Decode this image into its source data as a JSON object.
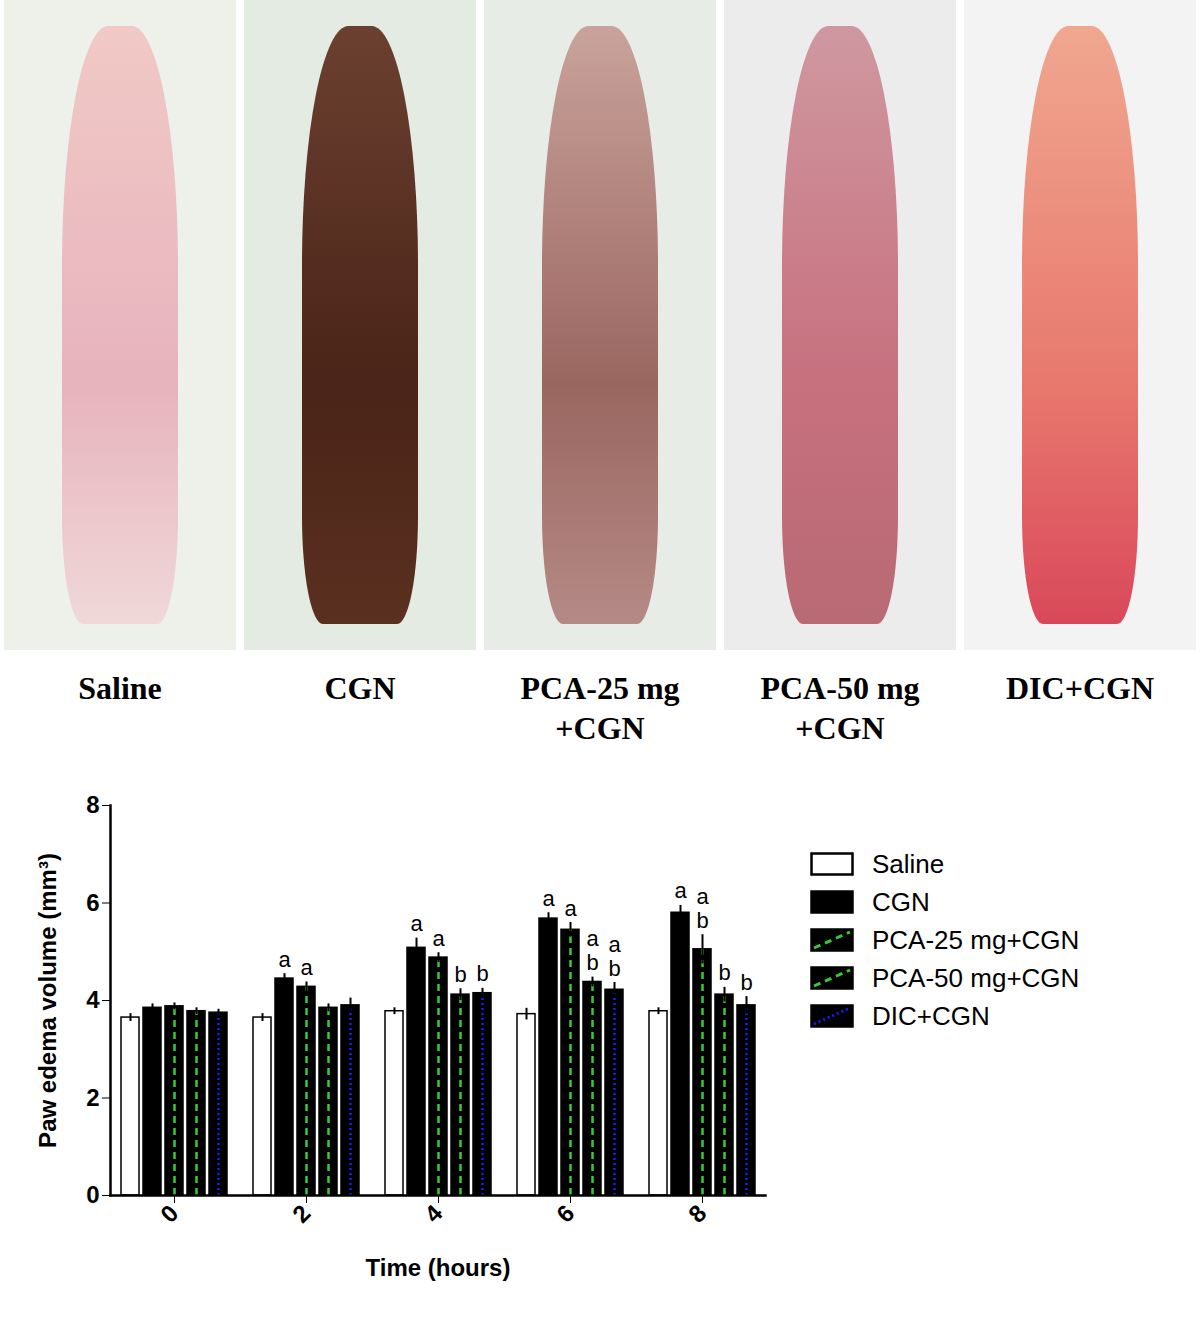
{
  "photo_panels": {
    "labels": [
      "Saline",
      "CGN",
      "PCA-25 mg+CGN",
      "PCA-50 mg+CGN",
      "DIC+CGN"
    ]
  },
  "chart_data": {
    "type": "bar",
    "xlabel": "Time (hours)",
    "ylabel": "Paw edema volume (mm³)",
    "categories": [
      0,
      2,
      4,
      6,
      8
    ],
    "ylim": [
      0,
      8
    ],
    "yticks": [
      0,
      2,
      4,
      6,
      8
    ],
    "legend": "right",
    "series": [
      {
        "name": "Saline",
        "color": "#ffffff",
        "values": [
          3.65,
          3.65,
          3.78,
          3.72,
          3.78
        ],
        "errors": [
          0.08,
          0.08,
          0.07,
          0.12,
          0.07
        ],
        "annotations": [
          null,
          null,
          null,
          null,
          null
        ]
      },
      {
        "name": "CGN",
        "color": "#000000",
        "values": [
          3.85,
          4.45,
          5.08,
          5.68,
          5.8
        ],
        "errors": [
          0.08,
          0.1,
          0.2,
          0.12,
          0.15
        ],
        "annotations": [
          null,
          [
            "a"
          ],
          [
            "a"
          ],
          [
            "a"
          ],
          [
            "a"
          ]
        ]
      },
      {
        "name": "PCA-25 mg+CGN",
        "color": "#33cc33",
        "line_style": "dashed",
        "values": [
          3.88,
          4.28,
          4.88,
          5.45,
          5.05
        ],
        "errors": [
          0.07,
          0.1,
          0.1,
          0.15,
          0.3
        ],
        "annotations": [
          null,
          [
            "a"
          ],
          [
            "a"
          ],
          [
            "a"
          ],
          [
            "a",
            "b"
          ]
        ]
      },
      {
        "name": "PCA-50 mg+CGN",
        "color": "#33cc33",
        "line_style": "dashed",
        "values": [
          3.78,
          3.85,
          4.12,
          4.38,
          4.12
        ],
        "errors": [
          0.07,
          0.08,
          0.12,
          0.1,
          0.15
        ],
        "annotations": [
          null,
          null,
          [
            "b"
          ],
          [
            "a",
            "b"
          ],
          [
            "b"
          ]
        ]
      },
      {
        "name": "DIC+CGN",
        "color": "#1a1aff",
        "line_style": "dotted",
        "values": [
          3.75,
          3.9,
          4.15,
          4.22,
          3.9
        ],
        "errors": [
          0.07,
          0.15,
          0.1,
          0.15,
          0.18
        ],
        "annotations": [
          null,
          null,
          [
            "b"
          ],
          [
            "a",
            "b"
          ],
          [
            "b"
          ]
        ]
      }
    ]
  }
}
